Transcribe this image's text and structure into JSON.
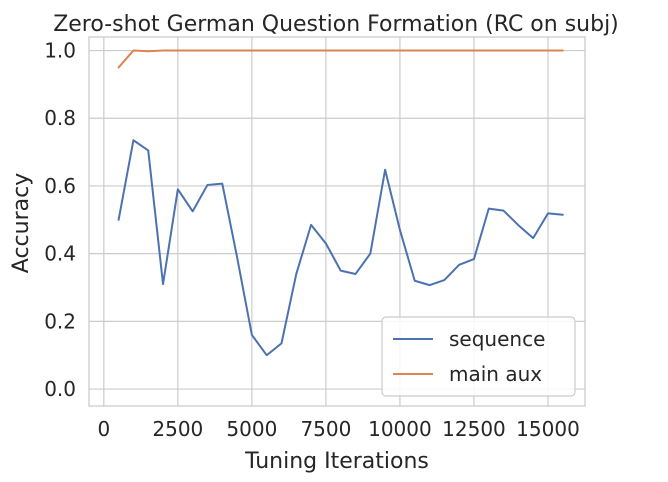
{
  "chart_data": {
    "type": "line",
    "title": "Zero-shot German Question Formation (RC on subj)",
    "xlabel": "Tuning Iterations",
    "ylabel": "Accuracy",
    "xlim": [
      -500,
      16250
    ],
    "ylim": [
      -0.05,
      1.04
    ],
    "xticks": [
      0,
      2500,
      5000,
      7500,
      10000,
      12500,
      15000
    ],
    "yticks": [
      0.0,
      0.2,
      0.4,
      0.6,
      0.8,
      1.0
    ],
    "grid": true,
    "legend_position": "lower-right",
    "series": [
      {
        "name": "sequence",
        "color": "#4c72b0",
        "x": [
          500,
          1000,
          1500,
          2000,
          2500,
          3000,
          3500,
          4000,
          4500,
          5000,
          5500,
          6000,
          6500,
          7000,
          7500,
          8000,
          8500,
          9000,
          9500,
          10000,
          10500,
          11000,
          11500,
          12000,
          12500,
          13000,
          13500,
          14000,
          14500,
          15000,
          15500
        ],
        "y": [
          0.5,
          0.735,
          0.705,
          0.31,
          0.59,
          0.525,
          0.603,
          0.607,
          0.39,
          0.16,
          0.1,
          0.135,
          0.34,
          0.485,
          0.43,
          0.35,
          0.34,
          0.4,
          0.648,
          0.47,
          0.32,
          0.307,
          0.322,
          0.367,
          0.384,
          0.533,
          0.527,
          0.484,
          0.446,
          0.519,
          0.515
        ]
      },
      {
        "name": "main aux",
        "color": "#dd8452",
        "x": [
          500,
          1000,
          1500,
          2000,
          2500,
          3000,
          3500,
          4000,
          4500,
          5000,
          5500,
          6000,
          6500,
          7000,
          7500,
          8000,
          8500,
          9000,
          9500,
          10000,
          10500,
          11000,
          11500,
          12000,
          12500,
          13000,
          13500,
          14000,
          14500,
          15000,
          15500
        ],
        "y": [
          0.95,
          1.0,
          0.998,
          1.0,
          1.0,
          1.0,
          1.0,
          1.0,
          1.0,
          1.0,
          1.0,
          1.0,
          1.0,
          1.0,
          1.0,
          1.0,
          1.0,
          1.0,
          1.0,
          1.0,
          1.0,
          1.0,
          1.0,
          1.0,
          1.0,
          1.0,
          1.0,
          1.0,
          1.0,
          1.0,
          1.0
        ]
      }
    ]
  }
}
